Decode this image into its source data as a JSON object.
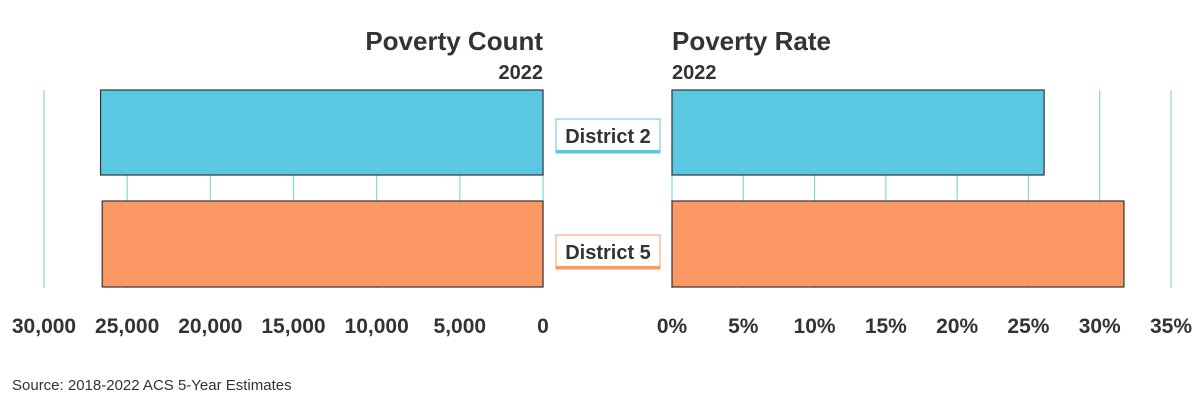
{
  "chart_data": [
    {
      "type": "bar",
      "orientation": "horizontal",
      "direction": "reversed",
      "title": "Poverty Count",
      "subtitle": "2022",
      "categories": [
        "District 2",
        "District 5"
      ],
      "values": [
        26600,
        26500
      ],
      "xlim": [
        0,
        30000
      ],
      "ticks": [
        "30,000",
        "25,000",
        "20,000",
        "15,000",
        "10,000",
        "5,000",
        "0"
      ],
      "tick_values": [
        30000,
        25000,
        20000,
        15000,
        10000,
        5000,
        0
      ],
      "grid": true
    },
    {
      "type": "bar",
      "orientation": "horizontal",
      "title": "Poverty Rate",
      "subtitle": "2022",
      "categories": [
        "District 2",
        "District 5"
      ],
      "values": [
        26.1,
        31.7
      ],
      "xlim": [
        0,
        35
      ],
      "ticks": [
        "0%",
        "5%",
        "10%",
        "15%",
        "20%",
        "25%",
        "30%",
        "35%"
      ],
      "tick_values": [
        0,
        5,
        10,
        15,
        20,
        25,
        30,
        35
      ],
      "grid": true
    }
  ],
  "categories": [
    {
      "label": "District 2",
      "color": "#5bc8e3"
    },
    {
      "label": "District 5",
      "color": "#fb9863"
    }
  ],
  "colors": {
    "grid": "#7fdcc7",
    "text": "#333333",
    "bar_border": "#333333"
  },
  "source": "Source: 2018-2022 ACS 5-Year Estimates"
}
